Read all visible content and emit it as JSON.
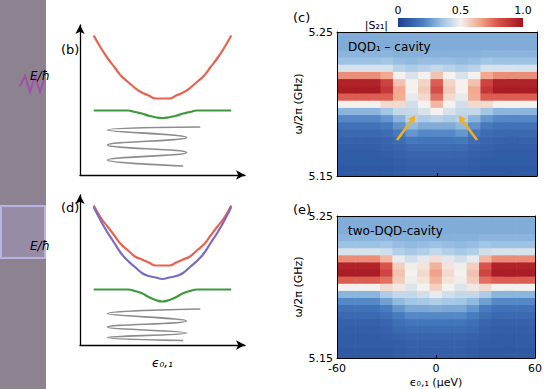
{
  "chart_data": [
    {
      "type": "line",
      "panel": "(b)",
      "ylabel": "E/ħ",
      "tick_labels": false,
      "xlim": [
        -1.2,
        1.2
      ],
      "ylim": [
        0,
        1
      ],
      "x": [
        -1,
        -0.9,
        -0.8,
        -0.7,
        -0.6,
        -0.5,
        -0.4,
        -0.3,
        -0.2,
        -0.1,
        0,
        0.1,
        0.2,
        0.3,
        0.4,
        0.5,
        0.6,
        0.7,
        0.8,
        0.9,
        1
      ],
      "series": [
        {
          "color": "#e8624f",
          "values": [
            0.93,
            0.85,
            0.78,
            0.72,
            0.66,
            0.62,
            0.58,
            0.55,
            0.53,
            0.51,
            0.51,
            0.51,
            0.53,
            0.55,
            0.58,
            0.62,
            0.66,
            0.72,
            0.78,
            0.85,
            0.93
          ]
        },
        {
          "color": "#3f9a3f",
          "values": [
            0.43,
            0.43,
            0.43,
            0.43,
            0.43,
            0.43,
            0.42,
            0.41,
            0.395,
            0.385,
            0.38,
            0.385,
            0.395,
            0.41,
            0.42,
            0.43,
            0.43,
            0.43,
            0.43,
            0.43,
            0.43
          ]
        },
        {
          "color": "#8c8c8c",
          "x": [
            0.55,
            -0.8,
            0.35,
            -0.8,
            0.35,
            -0.8,
            0.3
          ],
          "values": [
            0.32,
            0.3,
            0.25,
            0.2,
            0.15,
            0.1,
            0.06
          ]
        }
      ]
    },
    {
      "type": "heatmap",
      "panel": "(c)",
      "annotation": "DQD₁ – cavity",
      "ylabel": "ω/2π (GHz)",
      "tick_labels": "y",
      "xlim": [
        -60,
        60
      ],
      "xticks": [
        -60,
        0,
        60
      ],
      "ylim": [
        5.15,
        5.25
      ],
      "yticks": [
        5.15,
        5.25
      ],
      "x": [
        -60,
        -52.5,
        -45,
        -37.5,
        -30,
        -22.5,
        -15,
        -7.5,
        0,
        7.5,
        15,
        22.5,
        30,
        37.5,
        45,
        52.5,
        60
      ],
      "y": [
        5.15,
        5.155,
        5.16,
        5.165,
        5.17,
        5.175,
        5.18,
        5.185,
        5.19,
        5.195,
        5.2,
        5.205,
        5.21,
        5.215,
        5.22,
        5.225,
        5.23,
        5.235,
        5.24,
        5.245,
        5.25
      ],
      "values": [
        [
          0.08,
          0.08,
          0.08,
          0.08,
          0.08,
          0.09,
          0.1,
          0.1,
          0.1,
          0.1,
          0.1,
          0.09,
          0.08,
          0.08,
          0.08,
          0.08,
          0.08
        ],
        [
          0.08,
          0.08,
          0.08,
          0.08,
          0.08,
          0.09,
          0.1,
          0.1,
          0.1,
          0.1,
          0.1,
          0.09,
          0.08,
          0.08,
          0.08,
          0.08,
          0.08
        ],
        [
          0.09,
          0.09,
          0.09,
          0.09,
          0.09,
          0.1,
          0.11,
          0.11,
          0.11,
          0.11,
          0.11,
          0.1,
          0.09,
          0.09,
          0.09,
          0.09,
          0.09
        ],
        [
          0.09,
          0.09,
          0.09,
          0.09,
          0.1,
          0.11,
          0.12,
          0.12,
          0.12,
          0.12,
          0.12,
          0.11,
          0.1,
          0.09,
          0.09,
          0.09,
          0.09
        ],
        [
          0.1,
          0.1,
          0.1,
          0.1,
          0.11,
          0.12,
          0.14,
          0.14,
          0.14,
          0.14,
          0.14,
          0.12,
          0.11,
          0.1,
          0.1,
          0.1,
          0.1
        ],
        [
          0.11,
          0.11,
          0.11,
          0.11,
          0.12,
          0.14,
          0.18,
          0.17,
          0.17,
          0.17,
          0.18,
          0.14,
          0.12,
          0.11,
          0.11,
          0.11,
          0.11
        ],
        [
          0.13,
          0.13,
          0.13,
          0.13,
          0.14,
          0.18,
          0.25,
          0.22,
          0.22,
          0.22,
          0.25,
          0.18,
          0.14,
          0.13,
          0.13,
          0.13,
          0.13
        ],
        [
          0.16,
          0.16,
          0.16,
          0.16,
          0.18,
          0.24,
          0.33,
          0.3,
          0.3,
          0.3,
          0.33,
          0.24,
          0.18,
          0.16,
          0.16,
          0.16,
          0.16
        ],
        [
          0.22,
          0.22,
          0.22,
          0.22,
          0.25,
          0.32,
          0.4,
          0.38,
          0.4,
          0.38,
          0.4,
          0.32,
          0.25,
          0.22,
          0.22,
          0.22,
          0.22
        ],
        [
          0.32,
          0.32,
          0.32,
          0.32,
          0.36,
          0.42,
          0.42,
          0.45,
          0.5,
          0.45,
          0.42,
          0.42,
          0.36,
          0.32,
          0.32,
          0.32,
          0.32
        ],
        [
          0.5,
          0.5,
          0.5,
          0.5,
          0.55,
          0.55,
          0.44,
          0.5,
          0.62,
          0.5,
          0.44,
          0.55,
          0.55,
          0.5,
          0.5,
          0.5,
          0.5
        ],
        [
          0.78,
          0.78,
          0.78,
          0.78,
          0.78,
          0.64,
          0.48,
          0.55,
          0.75,
          0.55,
          0.48,
          0.64,
          0.78,
          0.78,
          0.78,
          0.78,
          0.78
        ],
        [
          0.97,
          0.97,
          0.97,
          0.97,
          0.88,
          0.65,
          0.5,
          0.58,
          0.82,
          0.58,
          0.5,
          0.65,
          0.88,
          0.97,
          0.97,
          0.97,
          0.97
        ],
        [
          0.95,
          0.95,
          0.95,
          0.95,
          0.85,
          0.6,
          0.5,
          0.56,
          0.78,
          0.56,
          0.5,
          0.6,
          0.85,
          0.95,
          0.95,
          0.95,
          0.95
        ],
        [
          0.7,
          0.7,
          0.7,
          0.7,
          0.65,
          0.5,
          0.45,
          0.5,
          0.6,
          0.5,
          0.45,
          0.5,
          0.65,
          0.7,
          0.7,
          0.7,
          0.7
        ],
        [
          0.45,
          0.45,
          0.45,
          0.45,
          0.45,
          0.4,
          0.38,
          0.4,
          0.42,
          0.4,
          0.38,
          0.4,
          0.45,
          0.45,
          0.45,
          0.45,
          0.45
        ],
        [
          0.35,
          0.35,
          0.35,
          0.35,
          0.36,
          0.34,
          0.33,
          0.34,
          0.34,
          0.34,
          0.33,
          0.34,
          0.36,
          0.35,
          0.35,
          0.35,
          0.35
        ],
        [
          0.32,
          0.32,
          0.32,
          0.32,
          0.32,
          0.31,
          0.31,
          0.31,
          0.31,
          0.31,
          0.31,
          0.31,
          0.32,
          0.32,
          0.32,
          0.32,
          0.32
        ],
        [
          0.3,
          0.3,
          0.3,
          0.3,
          0.3,
          0.3,
          0.3,
          0.3,
          0.3,
          0.3,
          0.3,
          0.3,
          0.3,
          0.3,
          0.3,
          0.3,
          0.3
        ],
        [
          0.3,
          0.3,
          0.3,
          0.3,
          0.3,
          0.3,
          0.3,
          0.3,
          0.3,
          0.3,
          0.3,
          0.3,
          0.3,
          0.3,
          0.3,
          0.3,
          0.3
        ],
        [
          0.3,
          0.3,
          0.3,
          0.3,
          0.3,
          0.3,
          0.3,
          0.3,
          0.3,
          0.3,
          0.3,
          0.3,
          0.3,
          0.3,
          0.3,
          0.3,
          0.3
        ]
      ],
      "colorbar": {
        "label": "|S₂₁|",
        "range": [
          0,
          1
        ],
        "ticks": [
          0,
          0.5,
          {
            "value": 1,
            "label": "1.0"
          }
        ]
      },
      "arrows": [
        [
          -24,
          5.175,
          -13,
          5.192
        ],
        [
          24,
          5.175,
          13,
          5.192
        ]
      ]
    },
    {
      "type": "line",
      "panel": "(d)",
      "ylabel": "E/ħ",
      "xlabel": "ϵ₀,₁",
      "tick_labels": false,
      "xlim": [
        -1.2,
        1.2
      ],
      "ylim": [
        0,
        1
      ],
      "x": [
        -1,
        -0.9,
        -0.8,
        -0.7,
        -0.6,
        -0.5,
        -0.4,
        -0.3,
        -0.2,
        -0.1,
        0,
        0.1,
        0.2,
        0.3,
        0.4,
        0.5,
        0.6,
        0.7,
        0.8,
        0.9,
        1
      ],
      "series": [
        {
          "color": "#e8624f",
          "values": [
            0.93,
            0.85,
            0.79,
            0.73,
            0.67,
            0.63,
            0.59,
            0.57,
            0.55,
            0.53,
            0.53,
            0.53,
            0.55,
            0.57,
            0.59,
            0.63,
            0.67,
            0.73,
            0.79,
            0.85,
            0.93
          ]
        },
        {
          "color": "#7a6cc0",
          "values": [
            0.92,
            0.83,
            0.75,
            0.68,
            0.61,
            0.56,
            0.52,
            0.48,
            0.46,
            0.45,
            0.44,
            0.45,
            0.46,
            0.48,
            0.52,
            0.56,
            0.61,
            0.68,
            0.75,
            0.83,
            0.92
          ]
        },
        {
          "color": "#3f9a3f",
          "values": [
            0.37,
            0.37,
            0.37,
            0.37,
            0.37,
            0.37,
            0.36,
            0.345,
            0.32,
            0.3,
            0.29,
            0.3,
            0.32,
            0.345,
            0.36,
            0.37,
            0.37,
            0.37,
            0.37,
            0.37,
            0.37
          ]
        },
        {
          "color": "#8c8c8c",
          "x": [
            0.55,
            -0.8,
            0.35,
            -0.8,
            0.35,
            -0.8,
            0.3
          ],
          "values": [
            0.24,
            0.21,
            0.16,
            0.12,
            0.08,
            0.05,
            0.03
          ]
        }
      ]
    },
    {
      "type": "heatmap",
      "panel": "(e)",
      "annotation": "two-DQD-cavity",
      "ylabel": "ω/2π (GHz)",
      "xlabel": "ϵ₀,₁ (μeV)",
      "tick_labels": true,
      "xlim": [
        -60,
        60
      ],
      "xticks": [
        -60,
        0,
        60
      ],
      "ylim": [
        5.15,
        5.25
      ],
      "yticks": [
        5.15,
        5.25
      ],
      "x": [
        -60,
        -52.5,
        -45,
        -37.5,
        -30,
        -22.5,
        -15,
        -7.5,
        0,
        7.5,
        15,
        22.5,
        30,
        37.5,
        45,
        52.5,
        60
      ],
      "y": [
        5.15,
        5.155,
        5.16,
        5.165,
        5.17,
        5.175,
        5.18,
        5.185,
        5.19,
        5.195,
        5.2,
        5.205,
        5.21,
        5.215,
        5.22,
        5.225,
        5.23,
        5.235,
        5.24,
        5.245,
        5.25
      ],
      "values": [
        [
          0.08,
          0.08,
          0.08,
          0.08,
          0.08,
          0.09,
          0.1,
          0.1,
          0.1,
          0.1,
          0.1,
          0.09,
          0.08,
          0.08,
          0.08,
          0.08,
          0.08
        ],
        [
          0.08,
          0.08,
          0.08,
          0.08,
          0.08,
          0.09,
          0.1,
          0.1,
          0.1,
          0.1,
          0.1,
          0.09,
          0.08,
          0.08,
          0.08,
          0.08,
          0.08
        ],
        [
          0.09,
          0.09,
          0.09,
          0.09,
          0.09,
          0.1,
          0.11,
          0.11,
          0.11,
          0.11,
          0.11,
          0.1,
          0.09,
          0.09,
          0.09,
          0.09,
          0.09
        ],
        [
          0.09,
          0.09,
          0.09,
          0.09,
          0.1,
          0.11,
          0.12,
          0.12,
          0.12,
          0.12,
          0.12,
          0.11,
          0.1,
          0.09,
          0.09,
          0.09,
          0.09
        ],
        [
          0.1,
          0.1,
          0.1,
          0.1,
          0.11,
          0.13,
          0.14,
          0.14,
          0.14,
          0.14,
          0.14,
          0.13,
          0.11,
          0.1,
          0.1,
          0.1,
          0.1
        ],
        [
          0.11,
          0.11,
          0.11,
          0.11,
          0.12,
          0.15,
          0.17,
          0.17,
          0.17,
          0.17,
          0.17,
          0.15,
          0.12,
          0.11,
          0.11,
          0.11,
          0.11
        ],
        [
          0.13,
          0.13,
          0.13,
          0.13,
          0.15,
          0.19,
          0.22,
          0.22,
          0.22,
          0.22,
          0.22,
          0.19,
          0.15,
          0.13,
          0.13,
          0.13,
          0.13
        ],
        [
          0.16,
          0.16,
          0.16,
          0.16,
          0.19,
          0.25,
          0.29,
          0.29,
          0.3,
          0.29,
          0.29,
          0.25,
          0.19,
          0.16,
          0.16,
          0.16,
          0.16
        ],
        [
          0.22,
          0.22,
          0.22,
          0.22,
          0.27,
          0.33,
          0.36,
          0.37,
          0.39,
          0.37,
          0.36,
          0.33,
          0.27,
          0.22,
          0.22,
          0.22,
          0.22
        ],
        [
          0.32,
          0.32,
          0.32,
          0.32,
          0.38,
          0.42,
          0.42,
          0.44,
          0.48,
          0.44,
          0.42,
          0.42,
          0.38,
          0.32,
          0.32,
          0.32,
          0.32
        ],
        [
          0.5,
          0.5,
          0.5,
          0.5,
          0.55,
          0.52,
          0.46,
          0.5,
          0.57,
          0.5,
          0.46,
          0.52,
          0.55,
          0.5,
          0.5,
          0.5,
          0.5
        ],
        [
          0.78,
          0.78,
          0.78,
          0.78,
          0.75,
          0.58,
          0.49,
          0.53,
          0.63,
          0.53,
          0.49,
          0.58,
          0.75,
          0.78,
          0.78,
          0.78,
          0.78
        ],
        [
          0.97,
          0.97,
          0.97,
          0.97,
          0.84,
          0.6,
          0.5,
          0.55,
          0.66,
          0.55,
          0.5,
          0.6,
          0.84,
          0.97,
          0.97,
          0.97,
          0.97
        ],
        [
          0.95,
          0.95,
          0.95,
          0.95,
          0.8,
          0.57,
          0.49,
          0.53,
          0.63,
          0.53,
          0.49,
          0.57,
          0.8,
          0.95,
          0.95,
          0.95,
          0.95
        ],
        [
          0.7,
          0.7,
          0.7,
          0.7,
          0.62,
          0.48,
          0.44,
          0.47,
          0.54,
          0.47,
          0.44,
          0.48,
          0.62,
          0.7,
          0.7,
          0.7,
          0.7
        ],
        [
          0.45,
          0.45,
          0.45,
          0.45,
          0.44,
          0.39,
          0.37,
          0.39,
          0.42,
          0.39,
          0.37,
          0.39,
          0.44,
          0.45,
          0.45,
          0.45,
          0.45
        ],
        [
          0.35,
          0.35,
          0.35,
          0.35,
          0.36,
          0.34,
          0.33,
          0.34,
          0.35,
          0.34,
          0.33,
          0.34,
          0.36,
          0.35,
          0.35,
          0.35,
          0.35
        ],
        [
          0.32,
          0.32,
          0.32,
          0.32,
          0.32,
          0.31,
          0.31,
          0.31,
          0.31,
          0.31,
          0.31,
          0.31,
          0.32,
          0.32,
          0.32,
          0.32,
          0.32
        ],
        [
          0.3,
          0.3,
          0.3,
          0.3,
          0.3,
          0.3,
          0.3,
          0.3,
          0.3,
          0.3,
          0.3,
          0.3,
          0.3,
          0.3,
          0.3,
          0.3,
          0.3
        ],
        [
          0.3,
          0.3,
          0.3,
          0.3,
          0.3,
          0.3,
          0.3,
          0.3,
          0.3,
          0.3,
          0.3,
          0.3,
          0.3,
          0.3,
          0.3,
          0.3,
          0.3
        ],
        [
          0.3,
          0.3,
          0.3,
          0.3,
          0.3,
          0.3,
          0.3,
          0.3,
          0.3,
          0.3,
          0.3,
          0.3,
          0.3,
          0.3,
          0.3,
          0.3,
          0.3
        ]
      ]
    }
  ]
}
